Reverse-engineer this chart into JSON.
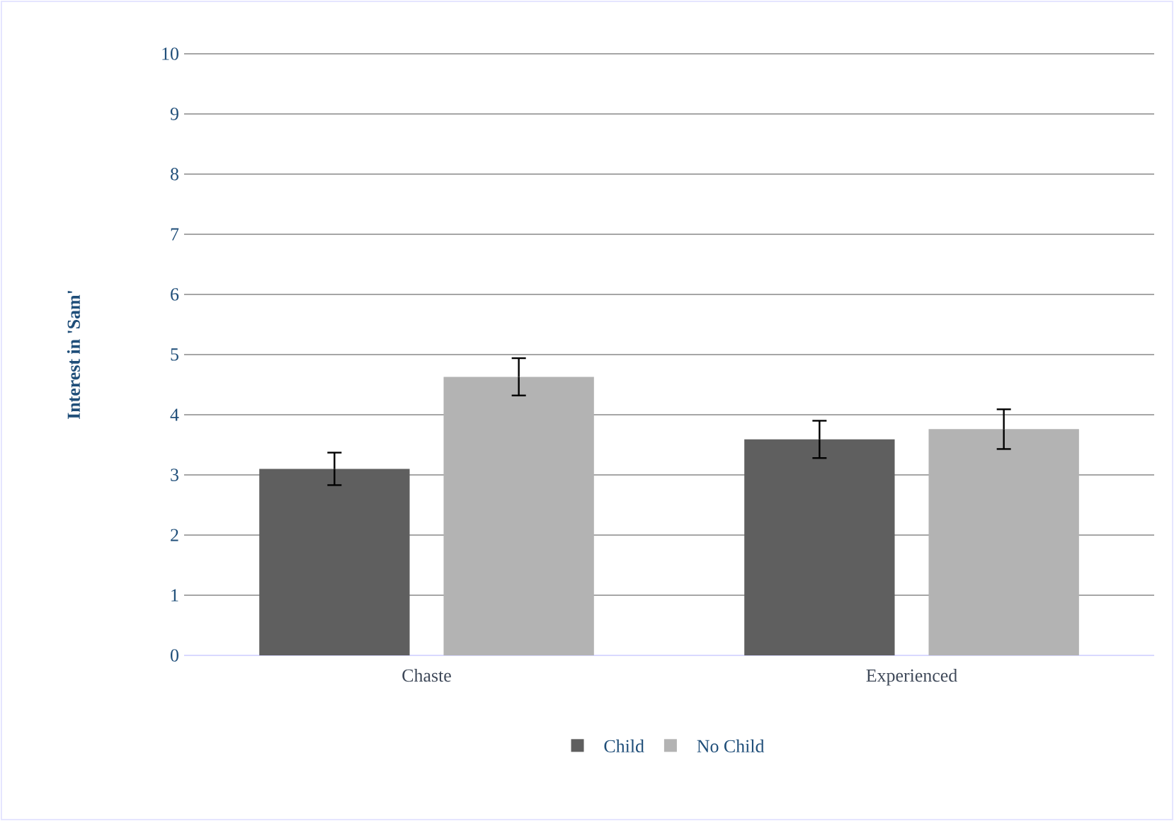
{
  "chart_data": {
    "type": "bar",
    "ylabel": "Interest in 'Sam'",
    "categories": [
      "Chaste",
      "Experienced"
    ],
    "series": [
      {
        "name": "Child",
        "color": "#5f5f5f",
        "values": [
          3.1,
          3.59
        ],
        "errors": [
          0.27,
          0.31
        ]
      },
      {
        "name": "No Child",
        "color": "#b3b3b3",
        "values": [
          4.63,
          3.76
        ],
        "errors": [
          0.31,
          0.33
        ]
      }
    ],
    "ylim": [
      0,
      10
    ],
    "yticks": [
      0,
      1,
      2,
      3,
      4,
      5,
      6,
      7,
      8,
      9,
      10
    ],
    "grid": "y",
    "legend": "bottom"
  }
}
